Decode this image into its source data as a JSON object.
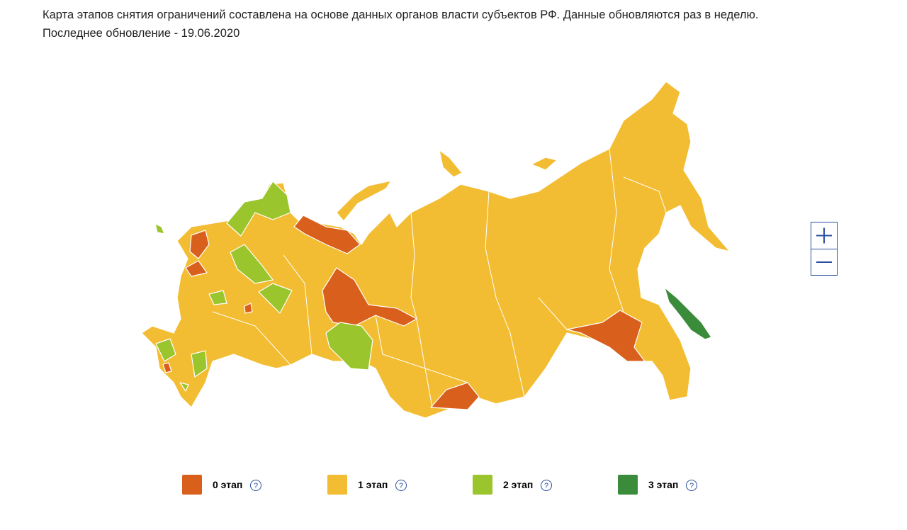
{
  "header": {
    "lines": [
      "Карта этапов снятия ограничений составлена на основе данных органов власти субъектов РФ. Данные обновляются раз в неделю.",
      "Последнее обновление - 19.06.2020"
    ]
  },
  "legend": [
    {
      "label": "0 этап",
      "color": "#d95f1c",
      "help": "?"
    },
    {
      "label": "1 этап",
      "color": "#f3bd33",
      "help": "?"
    },
    {
      "label": "2 этап",
      "color": "#9ac52c",
      "help": "?"
    },
    {
      "label": "3 этап",
      "color": "#3a8c3a",
      "help": "?"
    }
  ]
}
